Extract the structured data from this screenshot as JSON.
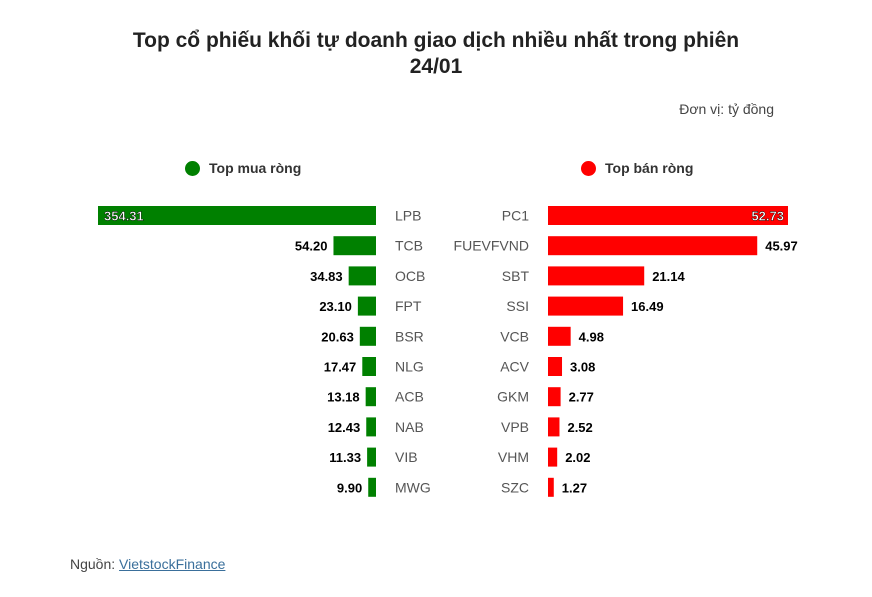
{
  "title_line1": "Top cổ phiếu khối tự doanh giao dịch nhiều nhất trong phiên",
  "title_line2": "24/01",
  "unit_label": "Đơn vị: tỷ đồng",
  "source_prefix": "Nguồn:",
  "source_link": "VietstockFinance",
  "colors": {
    "buy": "#008000",
    "sell": "#ff0000"
  },
  "chart_data": [
    {
      "type": "bar",
      "legend": "Top mua ròng",
      "legend_placement": "top-left",
      "categories": [
        "LPB",
        "TCB",
        "OCB",
        "FPT",
        "BSR",
        "NLG",
        "ACB",
        "NAB",
        "VIB",
        "MWG"
      ],
      "values": [
        354.31,
        54.2,
        34.83,
        23.1,
        20.63,
        17.47,
        13.18,
        12.43,
        11.33,
        9.9
      ],
      "value_labels": [
        "354.31",
        "54.20",
        "34.83",
        "23.10",
        "20.63",
        "17.47",
        "13.18",
        "12.43",
        "11.33",
        "9.90"
      ]
    },
    {
      "type": "bar",
      "legend": "Top bán ròng",
      "legend_placement": "top-right",
      "categories": [
        "PC1",
        "FUEVFVND",
        "SBT",
        "SSI",
        "VCB",
        "ACV",
        "GKM",
        "VPB",
        "VHM",
        "SZC"
      ],
      "values": [
        52.73,
        45.97,
        21.14,
        16.49,
        4.98,
        3.08,
        2.77,
        2.52,
        2.02,
        1.27
      ],
      "value_labels": [
        "52.73",
        "45.97",
        "21.14",
        "16.49",
        "4.98",
        "3.08",
        "2.77",
        "2.52",
        "2.02",
        "1.27"
      ]
    }
  ]
}
